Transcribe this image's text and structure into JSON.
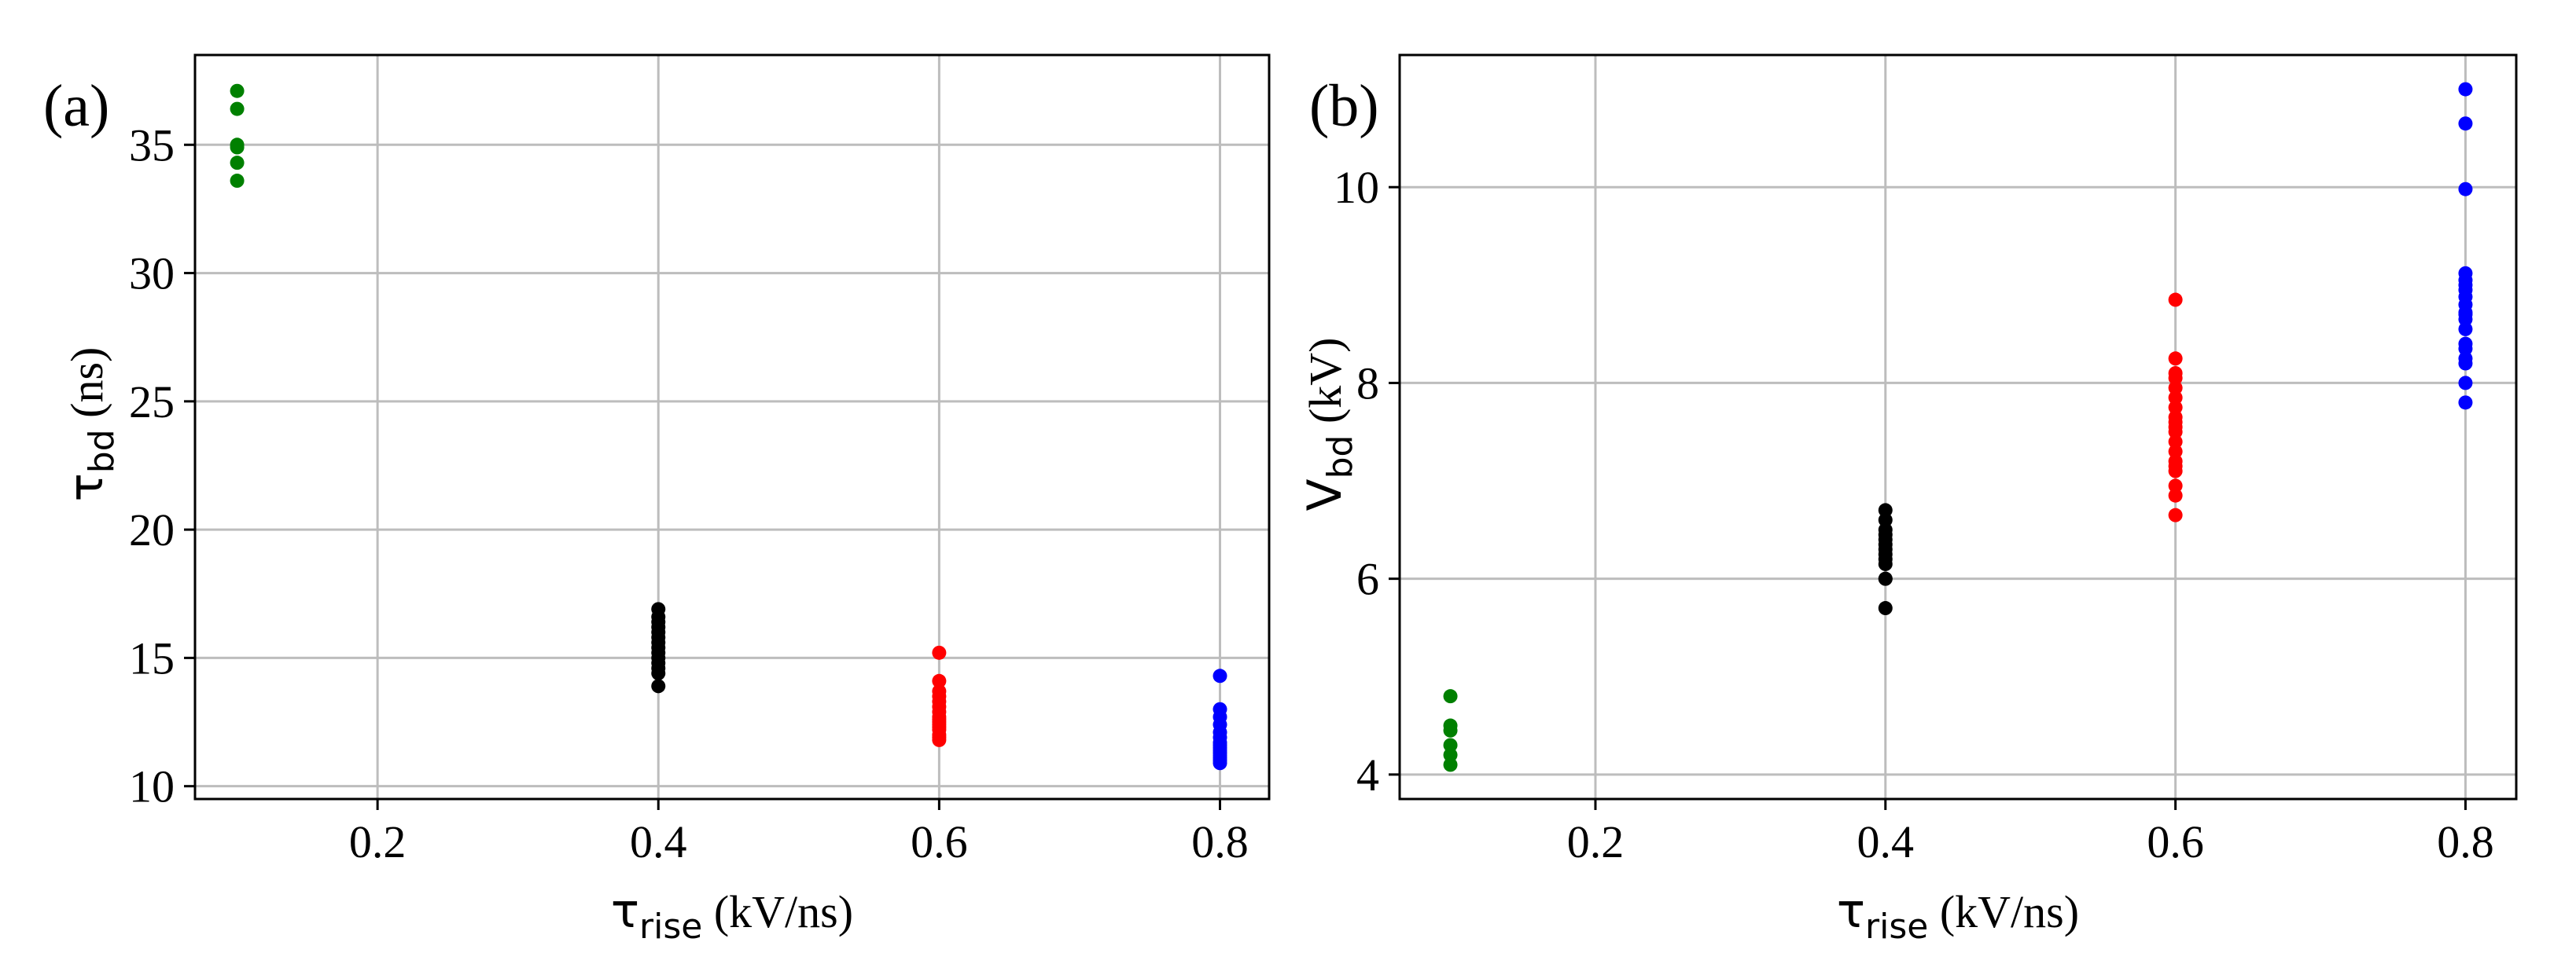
{
  "chart_data": [
    {
      "type": "scatter",
      "panel_label": "(a)",
      "xlabel_symbol": "τ",
      "xlabel_sub": "rise",
      "xlabel_rest": " (kV/ns)",
      "ylabel_symbol": "τ",
      "ylabel_sub": "bd",
      "ylabel_rest": " (ns)",
      "xlim": [
        0.07,
        0.835
      ],
      "ylim": [
        9.5,
        38.5
      ],
      "xticks": [
        0.2,
        0.4,
        0.6,
        0.8
      ],
      "yticks": [
        10,
        15,
        20,
        25,
        30,
        35
      ],
      "xtick_labels": [
        "0.2",
        "0.4",
        "0.6",
        "0.8"
      ],
      "ytick_labels": [
        "10",
        "15",
        "20",
        "25",
        "30",
        "35"
      ],
      "grid": true,
      "series": [
        {
          "color": "#008000",
          "x": [
            0.1,
            0.1,
            0.1,
            0.1,
            0.1,
            0.1
          ],
          "y": [
            37.1,
            36.4,
            35.0,
            34.9,
            34.3,
            33.6
          ]
        },
        {
          "color": "#000000",
          "x": [
            0.4,
            0.4,
            0.4,
            0.4,
            0.4,
            0.4,
            0.4,
            0.4,
            0.4,
            0.4,
            0.4,
            0.4,
            0.4,
            0.4
          ],
          "y": [
            16.9,
            16.6,
            16.4,
            16.2,
            16.0,
            15.8,
            15.6,
            15.4,
            15.2,
            15.0,
            14.8,
            14.6,
            14.4,
            13.9
          ]
        },
        {
          "color": "#ff0000",
          "x": [
            0.6,
            0.6,
            0.6,
            0.6,
            0.6,
            0.6,
            0.6,
            0.6,
            0.6,
            0.6,
            0.6,
            0.6,
            0.6,
            0.6,
            0.6,
            0.6
          ],
          "y": [
            15.2,
            14.1,
            13.7,
            13.5,
            13.3,
            13.1,
            12.9,
            12.7,
            12.6,
            12.5,
            12.4,
            12.3,
            12.2,
            12.0,
            11.9,
            11.8
          ]
        },
        {
          "color": "#0000ff",
          "x": [
            0.8,
            0.8,
            0.8,
            0.8,
            0.8,
            0.8,
            0.8,
            0.8,
            0.8,
            0.8,
            0.8,
            0.8,
            0.8,
            0.8,
            0.8
          ],
          "y": [
            14.3,
            13.0,
            12.7,
            12.4,
            12.1,
            11.9,
            11.7,
            11.6,
            11.5,
            11.4,
            11.3,
            11.2,
            11.1,
            11.0,
            10.9
          ]
        }
      ]
    },
    {
      "type": "scatter",
      "panel_label": "(b)",
      "xlabel_symbol": "τ",
      "xlabel_sub": "rise",
      "xlabel_rest": " (kV/ns)",
      "ylabel_symbol": "V",
      "ylabel_sub": "bd",
      "ylabel_rest": " (kV)",
      "xlim": [
        0.065,
        0.835
      ],
      "ylim": [
        3.75,
        11.35
      ],
      "xticks": [
        0.2,
        0.4,
        0.6,
        0.8
      ],
      "yticks": [
        4,
        6,
        8,
        10
      ],
      "xtick_labels": [
        "0.2",
        "0.4",
        "0.6",
        "0.8"
      ],
      "ytick_labels": [
        "4",
        "6",
        "8",
        "10"
      ],
      "grid": true,
      "series": [
        {
          "color": "#008000",
          "x": [
            0.1,
            0.1,
            0.1,
            0.1,
            0.1,
            0.1
          ],
          "y": [
            4.8,
            4.5,
            4.45,
            4.3,
            4.2,
            4.1
          ]
        },
        {
          "color": "#000000",
          "x": [
            0.4,
            0.4,
            0.4,
            0.4,
            0.4,
            0.4,
            0.4,
            0.4,
            0.4,
            0.4,
            0.4,
            0.4,
            0.4
          ],
          "y": [
            6.7,
            6.6,
            6.5,
            6.45,
            6.4,
            6.35,
            6.3,
            6.2,
            6.15,
            6.0,
            6.0,
            5.7,
            6.25
          ]
        },
        {
          "color": "#ff0000",
          "x": [
            0.6,
            0.6,
            0.6,
            0.6,
            0.6,
            0.6,
            0.6,
            0.6,
            0.6,
            0.6,
            0.6,
            0.6,
            0.6,
            0.6,
            0.6,
            0.6,
            0.6,
            0.6,
            0.6
          ],
          "y": [
            8.85,
            8.25,
            8.05,
            7.95,
            7.85,
            7.75,
            7.65,
            7.55,
            7.5,
            7.4,
            7.3,
            7.2,
            7.15,
            6.95,
            6.85,
            6.65,
            8.1,
            7.6,
            7.1
          ]
        },
        {
          "color": "#0000ff",
          "x": [
            0.8,
            0.8,
            0.8,
            0.8,
            0.8,
            0.8,
            0.8,
            0.8,
            0.8,
            0.8,
            0.8,
            0.8,
            0.8,
            0.8,
            0.8,
            0.8,
            0.8,
            0.8,
            0.8
          ],
          "y": [
            11.0,
            10.65,
            9.98,
            9.12,
            9.0,
            8.95,
            8.88,
            8.8,
            8.72,
            8.65,
            8.55,
            8.35,
            8.25,
            8.2,
            8.0,
            7.8,
            9.05,
            8.7,
            8.4
          ]
        }
      ]
    }
  ]
}
